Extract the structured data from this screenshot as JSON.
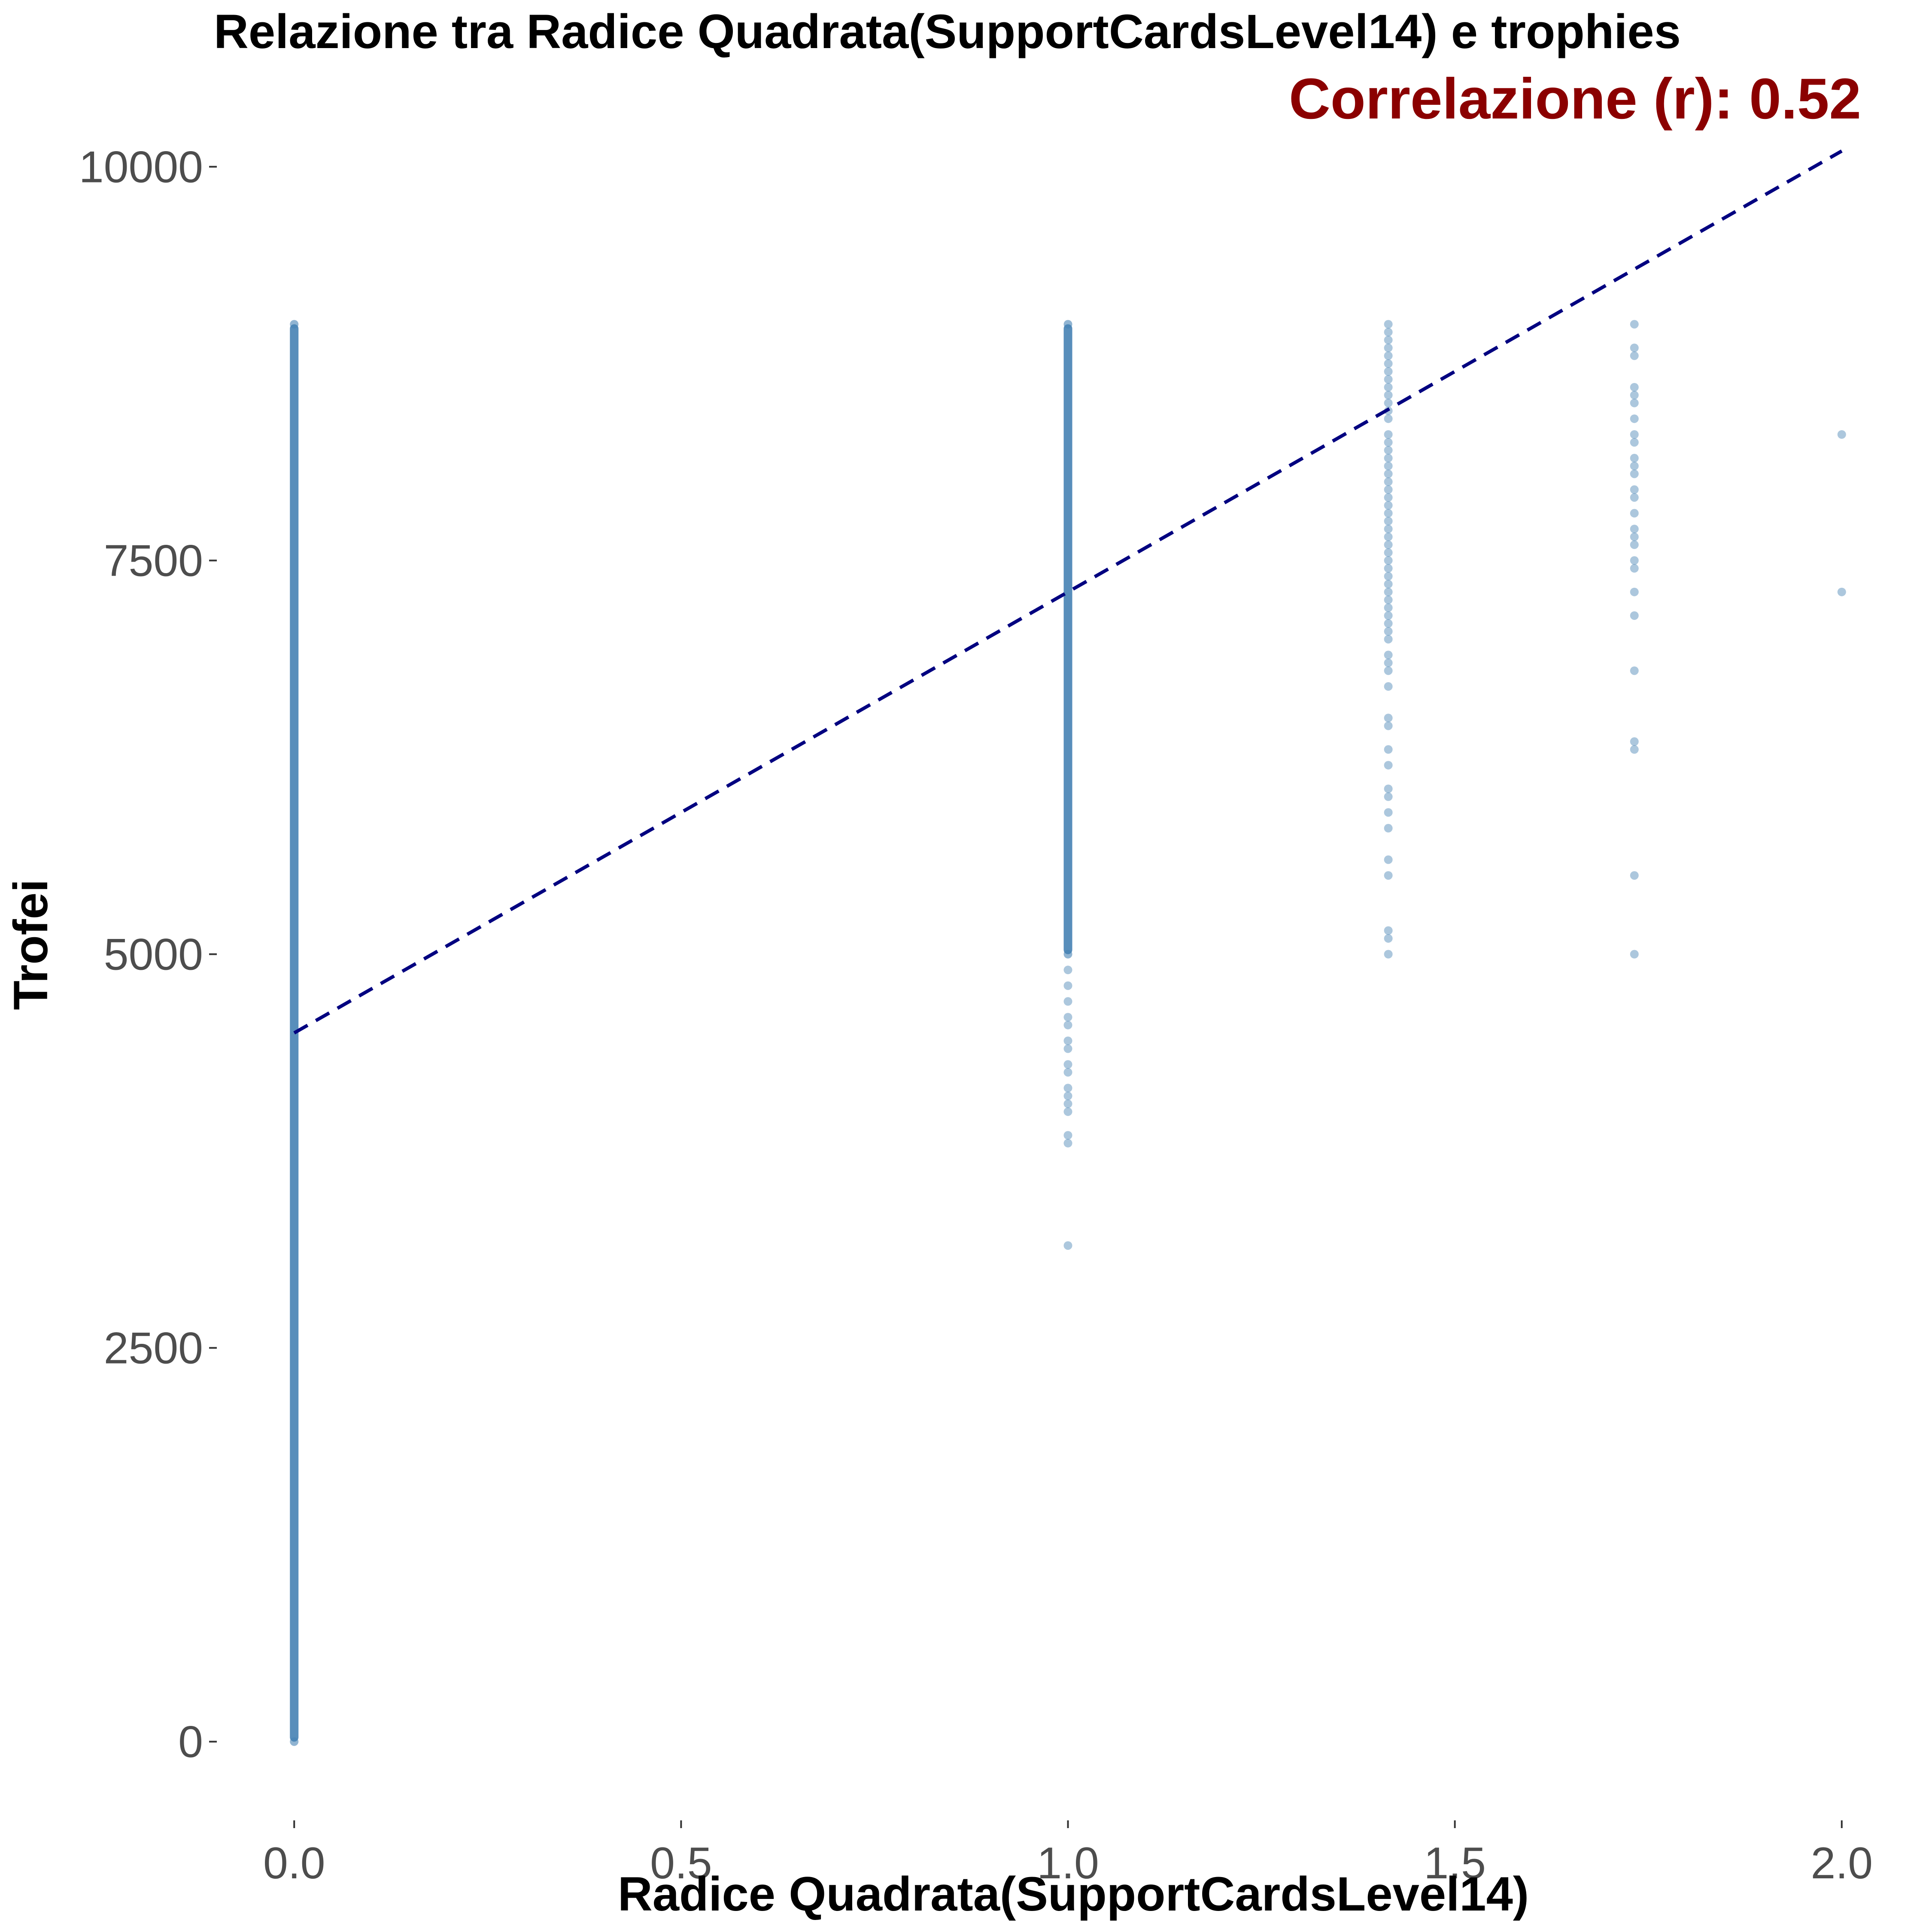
{
  "chart_data": {
    "type": "scatter",
    "title": "Relazione tra Radice Quadrata(SupportCardsLevel14) e trophies",
    "subtitle": "Correlazione (r): 0.52",
    "xlabel": "Radice Quadrata(SupportCardsLevel14)",
    "ylabel": "Trofei",
    "xlim": [
      -0.1,
      2.1
    ],
    "ylim": [
      -500,
      10500
    ],
    "x_ticks": [
      0,
      0.5,
      1,
      1.5,
      2
    ],
    "x_tick_labels": [
      "0.0",
      "0.5",
      "1.0",
      "1.5",
      "2.0"
    ],
    "y_ticks": [
      0,
      2500,
      5000,
      7500,
      10000
    ],
    "y_tick_labels": [
      "0",
      "2500",
      "5000",
      "7500",
      "10000"
    ],
    "grid": false,
    "legend": "none",
    "colors": {
      "points": "#4682b4",
      "trend_line": "#000080",
      "subtitle": "#8b0000"
    },
    "trend_line": {
      "style": "dashed",
      "x": [
        0,
        2
      ],
      "y": [
        4500,
        10100
      ]
    },
    "series": [
      {
        "x": 0,
        "y_range": [
          0,
          9000
        ],
        "dense": true
      },
      {
        "x": 1,
        "y_range": [
          5000,
          9000
        ],
        "dense": true,
        "sparse_y": [
          4900,
          4800,
          4700,
          4600,
          4550,
          4450,
          4400,
          4300,
          4250,
          4150,
          4100,
          4050,
          4000,
          3850,
          3800,
          3150
        ]
      },
      {
        "x": 1.414,
        "y_values": [
          9000,
          8950,
          8900,
          8850,
          8800,
          8750,
          8700,
          8650,
          8600,
          8550,
          8500,
          8450,
          8400,
          8300,
          8250,
          8200,
          8150,
          8100,
          8050,
          8000,
          7950,
          7900,
          7850,
          7800,
          7750,
          7700,
          7650,
          7600,
          7550,
          7500,
          7450,
          7400,
          7350,
          7300,
          7250,
          7200,
          7150,
          7100,
          7050,
          7000,
          6900,
          6850,
          6800,
          6700,
          6500,
          6450,
          6300,
          6200,
          6050,
          6000,
          5900,
          5800,
          5600,
          5500,
          5150,
          5100,
          5000
        ]
      },
      {
        "x": 1.732,
        "y_values": [
          9000,
          8850,
          8800,
          8600,
          8550,
          8500,
          8400,
          8300,
          8250,
          8150,
          8100,
          8050,
          7950,
          7900,
          7800,
          7700,
          7650,
          7600,
          7500,
          7450,
          7300,
          7150,
          6800,
          6350,
          6300,
          5500,
          5000
        ]
      },
      {
        "x": 2,
        "y_values": [
          8300,
          7300
        ]
      }
    ]
  }
}
